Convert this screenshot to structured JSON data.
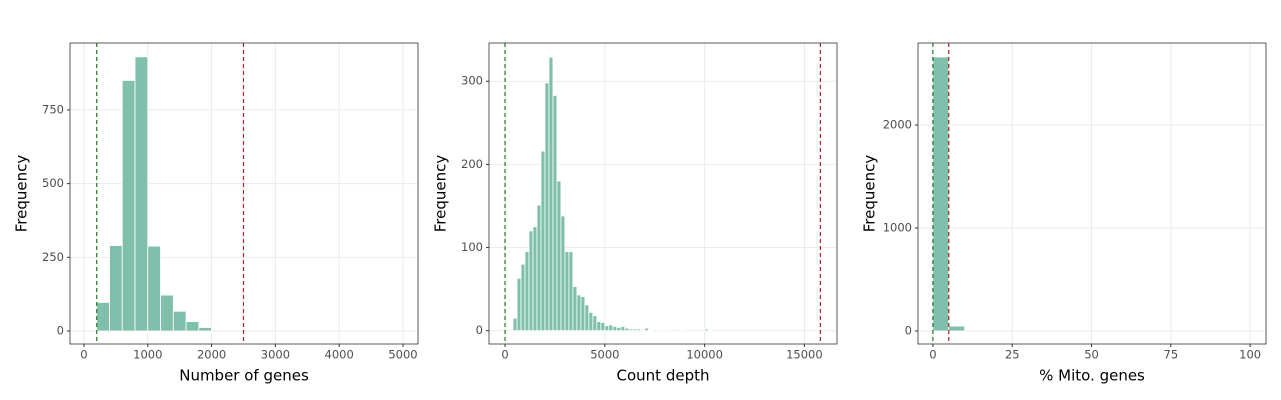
{
  "chart_data": [
    {
      "type": "histogram",
      "x_label": "Number of genes",
      "y_label": "Frequency",
      "bins": [
        200,
        400,
        600,
        800,
        1000,
        1200,
        1400,
        1600,
        1800,
        2000
      ],
      "values": [
        97,
        290,
        850,
        930,
        288,
        122,
        67,
        32,
        12
      ],
      "color": "#7fbfab",
      "xlim": [
        -219,
        5235
      ],
      "xticks": [
        0,
        1000,
        2000,
        3000,
        4000,
        5000
      ],
      "ylim": [
        -44,
        977
      ],
      "yticks": [
        0,
        250,
        500,
        750
      ],
      "grid": true,
      "vlines": [
        {
          "value": 200,
          "color": "#1b7a1b"
        },
        {
          "value": 2500,
          "color": "#b22222"
        }
      ]
    },
    {
      "type": "histogram",
      "x_label": "Count depth",
      "y_label": "Frequency",
      "bins": [
        400,
        600,
        800,
        1000,
        1200,
        1400,
        1600,
        1800,
        2000,
        2200,
        2400,
        2600,
        2800,
        3000,
        3200,
        3400,
        3600,
        3800,
        4000,
        4200,
        4400,
        4600,
        4800,
        5000,
        5200,
        5400,
        5600,
        5800,
        6000,
        6200,
        6400,
        6600,
        6800,
        7000,
        7200,
        7400,
        7600,
        7800,
        8000,
        8200,
        8400,
        8600,
        8800,
        9000,
        9200,
        9400,
        9600,
        9800,
        10000,
        10200,
        10400
      ],
      "values": [
        15,
        63,
        80,
        95,
        120,
        125,
        151,
        216,
        298,
        329,
        283,
        180,
        138,
        95,
        95,
        53,
        43,
        41,
        31,
        22,
        18,
        11,
        10,
        6,
        7,
        5,
        4,
        5,
        3,
        2,
        2,
        2,
        1,
        3,
        1,
        0,
        1,
        1,
        0,
        1,
        0,
        0,
        1,
        0,
        0,
        0,
        0,
        0,
        2,
        1
      ],
      "color": "#7fbfab",
      "xlim": [
        -804,
        16633
      ],
      "xticks": [
        0,
        5000,
        10000,
        15000
      ],
      "ylim": [
        -16,
        346
      ],
      "yticks": [
        0,
        100,
        200,
        300
      ],
      "grid": true,
      "vlines": [
        {
          "value": 0,
          "color": "#1b7a1b"
        },
        {
          "value": 15800,
          "color": "#b22222"
        }
      ]
    },
    {
      "type": "histogram",
      "x_label": "% Mito. genes",
      "y_label": "Frequency",
      "bins": [
        0,
        5,
        10
      ],
      "values": [
        2660,
        48
      ],
      "color": "#7fbfab",
      "xlim": [
        -4.7,
        105
      ],
      "xticks": [
        0,
        25,
        50,
        75,
        100
      ],
      "ylim": [
        -126,
        2796
      ],
      "yticks": [
        0,
        1000,
        2000
      ],
      "grid": true,
      "vlines": [
        {
          "value": 0,
          "color": "#1b7a1b"
        },
        {
          "value": 5,
          "color": "#b22222"
        }
      ]
    }
  ]
}
